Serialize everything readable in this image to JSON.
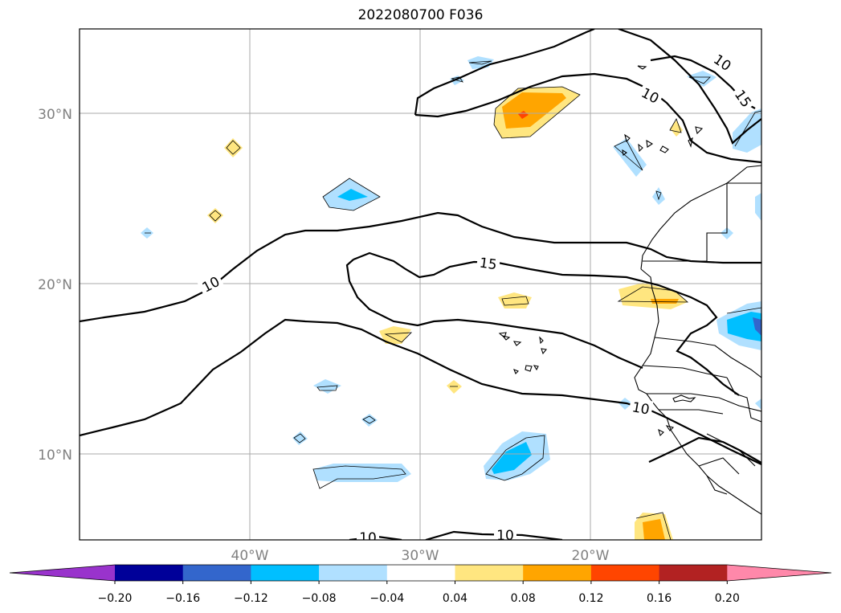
{
  "title": "2022080700 F036",
  "lat_labels": [
    "30°N",
    "20°N",
    "10°N"
  ],
  "lon_labels": [
    "40°W",
    "30°W",
    "20°W"
  ],
  "contour_labels": [
    "10",
    "10",
    "15",
    "10",
    "15",
    "10",
    "10",
    "10"
  ],
  "colorbar": {
    "ticks": [
      "−0.20",
      "−0.16",
      "−0.12",
      "−0.08",
      "−0.04",
      "0.04",
      "0.08",
      "0.12",
      "0.16",
      "0.20"
    ],
    "colors": [
      "#9933cc",
      "#000099",
      "#3366cc",
      "#00bfff",
      "#b0e0ff",
      "#ffffff",
      "#ffe680",
      "#ffa500",
      "#ff4500",
      "#b22222",
      "#ff88aa"
    ]
  }
}
